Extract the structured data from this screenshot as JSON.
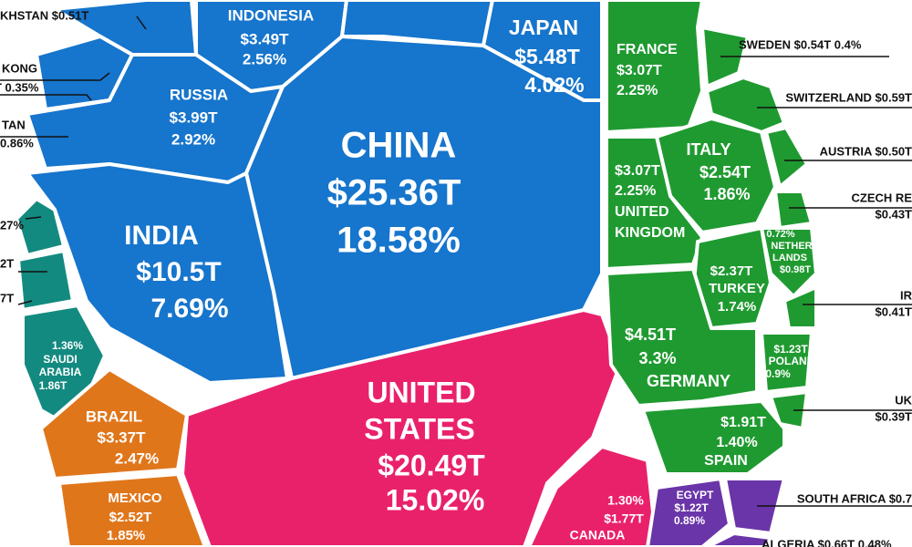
{
  "cells": [
    {
      "lines": [
        "INDONESIA",
        "$3.49T",
        "2.56%"
      ]
    },
    {
      "lines": [
        "JAPAN",
        "$5.48T",
        "4.02%"
      ]
    },
    {
      "lines": [
        "RUSSIA",
        "$3.99T",
        "2.92%"
      ]
    },
    {
      "lines": [
        "CHINA",
        "$25.36T",
        "18.58%"
      ]
    },
    {
      "lines": [
        "INDIA",
        "$10.5T",
        "7.69%"
      ]
    },
    {
      "lines": [
        "1.36%",
        "SAUDI",
        "ARABIA",
        "1.86T"
      ]
    },
    {
      "lines": [
        "BRAZIL",
        "$3.37T",
        "2.47%"
      ]
    },
    {
      "lines": [
        "MEXICO",
        "$2.52T",
        "1.85%"
      ]
    },
    {
      "lines": [
        "UNITED",
        "STATES",
        "$20.49T",
        "15.02%"
      ]
    },
    {
      "lines": [
        "1.30%",
        "$1.77T",
        "CANADA"
      ]
    },
    {
      "lines": [
        "FRANCE",
        "$3.07T",
        "2.25%"
      ]
    },
    {
      "lines": [
        "ITALY",
        "$2.54T",
        "1.86%"
      ]
    },
    {
      "lines": [
        "$3.07T",
        "2.25%",
        "UNITED",
        "KINGDOM"
      ]
    },
    {
      "lines": [
        "0.72%",
        "NETHER",
        "LANDS",
        "$0.98T"
      ]
    },
    {
      "lines": [
        "$2.37T",
        "TURKEY",
        "1.74%"
      ]
    },
    {
      "lines": [
        "$4.51T",
        "3.3%",
        "GERMANY"
      ]
    },
    {
      "lines": [
        "$1.23T",
        "POLAND",
        "0.9%"
      ]
    },
    {
      "lines": [
        "$1.91T",
        "1.40%",
        "SPAIN"
      ]
    },
    {
      "lines": [
        "EGYPT",
        "$1.22T",
        "0.89%"
      ]
    }
  ],
  "callouts": [
    {
      "lines": [
        "KHSTAN $0.51T"
      ]
    },
    {
      "lines": [
        "KONG",
        "T  0.35%"
      ]
    },
    {
      "lines": [
        "TAN",
        "0.86%"
      ]
    },
    {
      "lines": [
        "27%"
      ]
    },
    {
      "lines": [
        "2T"
      ]
    },
    {
      "lines": [
        "7T"
      ]
    },
    {
      "lines": [
        "SWEDEN  $0.54T  0.4%"
      ]
    },
    {
      "lines": [
        "SWITZERLAND $0.59T"
      ]
    },
    {
      "lines": [
        "AUSTRIA $0.50T"
      ]
    },
    {
      "lines": [
        "CZECH RE",
        "$0.43T"
      ]
    },
    {
      "lines": [
        "IR",
        "$0.41T"
      ]
    },
    {
      "lines": [
        "UK",
        "$0.39T"
      ]
    },
    {
      "lines": [
        "SOUTH AFRICA $0.7"
      ]
    },
    {
      "lines": [
        "ALGERIA $0.66T  0.48%"
      ]
    }
  ]
}
